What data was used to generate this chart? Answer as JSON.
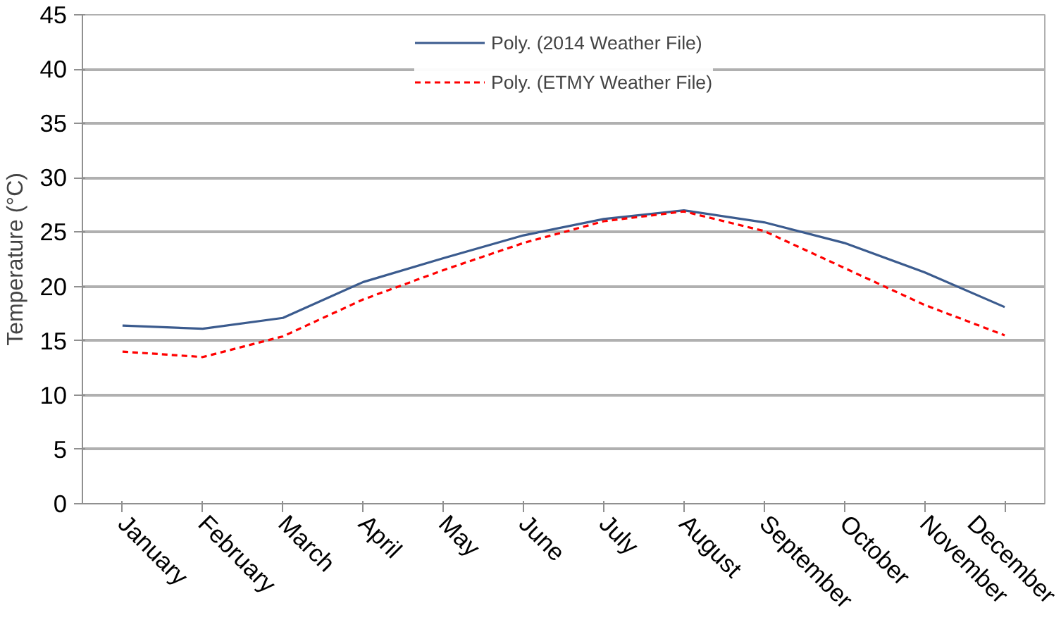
{
  "chart_data": {
    "type": "line",
    "ylabel": "Temperature (°C)",
    "categories": [
      "January",
      "February",
      "March",
      "April",
      "May",
      "June",
      "July",
      "August",
      "September",
      "October",
      "November",
      "December"
    ],
    "series": [
      {
        "name": "Poly. (2014 Weather File)",
        "color": "#3b5b8e",
        "line_style": "solid",
        "values": [
          16.4,
          16.1,
          17.1,
          20.4,
          22.6,
          24.7,
          26.2,
          27.0,
          25.9,
          24.0,
          21.3,
          18.1
        ]
      },
      {
        "name": "Poly. (ETMY Weather File)",
        "color": "#ff0000",
        "line_style": "dashed",
        "values": [
          14.0,
          13.5,
          15.4,
          18.8,
          21.5,
          24.0,
          26.0,
          26.9,
          25.1,
          21.7,
          18.3,
          15.5
        ]
      }
    ],
    "ylim": [
      0,
      45
    ],
    "yticks": [
      0,
      5,
      10,
      15,
      20,
      25,
      30,
      35,
      40,
      45
    ],
    "grid": "y",
    "legend": "top",
    "marker": "none"
  }
}
